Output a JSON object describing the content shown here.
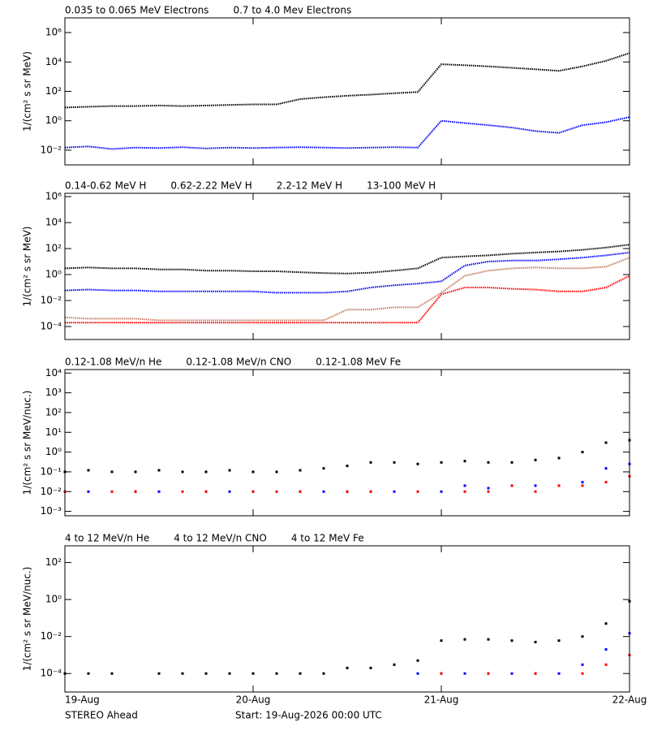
{
  "chart_data": [
    {
      "type": "line",
      "log_y": true,
      "ylabel": "1/(cm² s sr MeV)",
      "xlim": [
        0,
        3
      ],
      "xticks": [
        0,
        1,
        2,
        3
      ],
      "ylim": [
        0.001,
        10000000
      ],
      "yticks": [
        {
          "value": 0.01,
          "label": "10⁻²"
        },
        {
          "value": 1,
          "label": "10⁰"
        },
        {
          "value": 100,
          "label": "10²"
        },
        {
          "value": 10000,
          "label": "10⁴"
        },
        {
          "value": 1000000,
          "label": "10⁶"
        }
      ],
      "x": [
        0,
        0.125,
        0.25,
        0.375,
        0.5,
        0.625,
        0.75,
        0.875,
        1,
        1.125,
        1.25,
        1.375,
        1.5,
        1.625,
        1.75,
        1.875,
        2,
        2.125,
        2.25,
        2.375,
        2.5,
        2.625,
        2.75,
        2.875,
        3
      ],
      "series": [
        {
          "name": "0.035 to 0.065 MeV Electrons",
          "color": "#000000",
          "values": [
            8,
            9,
            10,
            10,
            11,
            10,
            11,
            12,
            13,
            13,
            30,
            40,
            50,
            60,
            75,
            90,
            7000,
            6000,
            5000,
            4000,
            3200,
            2500,
            5000,
            12000,
            40000
          ]
        },
        {
          "name": "0.7 to 4.0 Mev Electrons",
          "color": "#0000ff",
          "values": [
            0.015,
            0.018,
            0.012,
            0.015,
            0.014,
            0.016,
            0.013,
            0.015,
            0.014,
            0.015,
            0.016,
            0.015,
            0.014,
            0.015,
            0.016,
            0.015,
            1.0,
            0.7,
            0.5,
            0.35,
            0.2,
            0.15,
            0.5,
            0.8,
            1.8
          ]
        }
      ]
    },
    {
      "type": "line",
      "log_y": true,
      "ylabel": "1/(cm² s sr MeV)",
      "xlim": [
        0,
        3
      ],
      "xticks": [
        0,
        1,
        2,
        3
      ],
      "ylim": [
        1e-05,
        1800000
      ],
      "yticks": [
        {
          "value": 0.0001,
          "label": "10⁻⁴"
        },
        {
          "value": 0.01,
          "label": "10⁻²"
        },
        {
          "value": 1,
          "label": "10⁰"
        },
        {
          "value": 100,
          "label": "10²"
        },
        {
          "value": 10000,
          "label": "10⁴"
        },
        {
          "value": 1000000,
          "label": "10⁶"
        }
      ],
      "x": [
        0,
        0.125,
        0.25,
        0.375,
        0.5,
        0.625,
        0.75,
        0.875,
        1,
        1.125,
        1.25,
        1.375,
        1.5,
        1.625,
        1.75,
        1.875,
        2,
        2.125,
        2.25,
        2.375,
        2.5,
        2.625,
        2.75,
        2.875,
        3
      ],
      "series": [
        {
          "name": "0.14-0.62 MeV H",
          "color": "#000000",
          "values": [
            3,
            3.5,
            3,
            3,
            2.5,
            2.5,
            2,
            2,
            1.8,
            1.8,
            1.5,
            1.3,
            1.2,
            1.4,
            2,
            3,
            20,
            25,
            30,
            40,
            50,
            60,
            80,
            120,
            200
          ]
        },
        {
          "name": "0.62-2.22 MeV H",
          "color": "#0000ff",
          "values": [
            0.06,
            0.07,
            0.06,
            0.06,
            0.05,
            0.05,
            0.05,
            0.05,
            0.05,
            0.04,
            0.04,
            0.04,
            0.05,
            0.1,
            0.15,
            0.2,
            0.3,
            5,
            10,
            12,
            12,
            15,
            20,
            30,
            50
          ]
        },
        {
          "name": "2.2-12 MeV H",
          "color": "#c87c64",
          "values": [
            0.0005,
            0.0004,
            0.0004,
            0.0004,
            0.0003,
            0.0003,
            0.0003,
            0.0003,
            0.0003,
            0.0003,
            0.0003,
            0.0003,
            0.002,
            0.002,
            0.003,
            0.003,
            0.04,
            0.8,
            2,
            3,
            3.5,
            3,
            3,
            4,
            20
          ]
        },
        {
          "name": "13-100 MeV H",
          "color": "#ff0000",
          "values": [
            0.0002,
            0.0002,
            0.0002,
            0.0002,
            0.0002,
            0.0002,
            0.0002,
            0.0002,
            0.0002,
            0.0002,
            0.0002,
            0.0002,
            0.0002,
            0.0002,
            0.0002,
            0.0002,
            0.03,
            0.1,
            0.1,
            0.08,
            0.07,
            0.05,
            0.05,
            0.1,
            0.8
          ]
        }
      ]
    },
    {
      "type": "scatter",
      "log_y": true,
      "ylabel": "1/(cm² s sr MeV/nuc.)",
      "xlim": [
        0,
        3
      ],
      "xticks": [
        0,
        1,
        2,
        3
      ],
      "ylim": [
        0.0006,
        15000
      ],
      "yticks": [
        {
          "value": 0.001,
          "label": "10⁻³"
        },
        {
          "value": 0.01,
          "label": "10⁻²"
        },
        {
          "value": 0.1,
          "label": "10⁻¹"
        },
        {
          "value": 1,
          "label": "10⁰"
        },
        {
          "value": 10,
          "label": "10¹"
        },
        {
          "value": 100,
          "label": "10²"
        },
        {
          "value": 1000,
          "label": "10³"
        },
        {
          "value": 10000,
          "label": "10⁴"
        }
      ],
      "x": [
        0,
        0.125,
        0.25,
        0.375,
        0.5,
        0.625,
        0.75,
        0.875,
        1,
        1.125,
        1.25,
        1.375,
        1.5,
        1.625,
        1.75,
        1.875,
        2,
        2.125,
        2.25,
        2.375,
        2.5,
        2.625,
        2.75,
        2.875,
        3
      ],
      "series": [
        {
          "name": "0.12-1.08 MeV/n He",
          "color": "#000000",
          "values": [
            0.1,
            0.12,
            0.1,
            0.1,
            0.12,
            0.1,
            0.1,
            0.12,
            0.1,
            0.1,
            0.12,
            0.15,
            0.2,
            0.3,
            0.3,
            0.25,
            0.3,
            0.35,
            0.3,
            0.3,
            0.4,
            0.5,
            1.0,
            3,
            4
          ]
        },
        {
          "name": "0.12-1.08 MeV/n CNO",
          "color": "#0000ff",
          "values": [
            0.01,
            0.01,
            null,
            0.01,
            0.01,
            null,
            0.01,
            0.01,
            0.01,
            null,
            0.01,
            0.01,
            0.01,
            0.01,
            0.01,
            null,
            0.01,
            0.02,
            0.015,
            0.02,
            0.02,
            0.02,
            0.03,
            0.15,
            0.25
          ]
        },
        {
          "name": "0.12-1.08 MeV Fe",
          "color": "#ff0000",
          "values": [
            0.01,
            null,
            0.01,
            0.01,
            null,
            0.01,
            0.01,
            null,
            0.01,
            0.01,
            0.01,
            null,
            0.01,
            0.01,
            null,
            0.01,
            null,
            0.01,
            0.01,
            0.02,
            0.01,
            0.02,
            0.02,
            0.03,
            0.06
          ]
        }
      ]
    },
    {
      "type": "scatter",
      "log_y": true,
      "ylabel": "1/(cm² s sr MeV/nuc.)",
      "xlim": [
        0,
        3
      ],
      "xticks": [
        {
          "value": 0,
          "label": "19-Aug"
        },
        {
          "value": 1,
          "label": "20-Aug"
        },
        {
          "value": 2,
          "label": "21-Aug"
        },
        {
          "value": 3,
          "label": "22-Aug"
        }
      ],
      "ylim": [
        1e-05,
        800
      ],
      "yticks": [
        {
          "value": 0.0001,
          "label": "10⁻⁴"
        },
        {
          "value": 0.01,
          "label": "10⁻²"
        },
        {
          "value": 1,
          "label": "10⁰"
        },
        {
          "value": 100,
          "label": "10²"
        }
      ],
      "x": [
        0,
        0.125,
        0.25,
        0.375,
        0.5,
        0.625,
        0.75,
        0.875,
        1,
        1.125,
        1.25,
        1.375,
        1.5,
        1.625,
        1.75,
        1.875,
        2,
        2.125,
        2.25,
        2.375,
        2.5,
        2.625,
        2.75,
        2.875,
        3
      ],
      "series": [
        {
          "name": "4 to 12 MeV/n He",
          "color": "#000000",
          "values": [
            0.0001,
            0.0001,
            0.0001,
            null,
            0.0001,
            0.0001,
            0.0001,
            0.0001,
            0.0001,
            0.0001,
            0.0001,
            0.0001,
            0.0002,
            0.0002,
            0.0003,
            0.0005,
            0.006,
            0.007,
            0.007,
            0.006,
            0.005,
            0.006,
            0.01,
            0.05,
            0.8
          ]
        },
        {
          "name": "4 to 12 MeV/n CNO",
          "color": "#0000ff",
          "values": [
            null,
            null,
            null,
            null,
            null,
            null,
            null,
            null,
            null,
            null,
            null,
            null,
            null,
            null,
            null,
            0.0001,
            0.0001,
            0.0001,
            0.0001,
            0.0001,
            0.0001,
            0.0001,
            0.0003,
            0.002,
            0.015
          ]
        },
        {
          "name": "4 to 12 MeV Fe",
          "color": "#ff0000",
          "values": [
            null,
            null,
            null,
            null,
            null,
            null,
            null,
            null,
            null,
            null,
            null,
            null,
            null,
            null,
            null,
            null,
            0.0001,
            null,
            0.0001,
            null,
            0.0001,
            null,
            0.0001,
            0.0003,
            0.001
          ]
        }
      ]
    }
  ],
  "footer": {
    "left": "STEREO Ahead",
    "start": "Start: 19-Aug-2026 00:00 UTC"
  }
}
